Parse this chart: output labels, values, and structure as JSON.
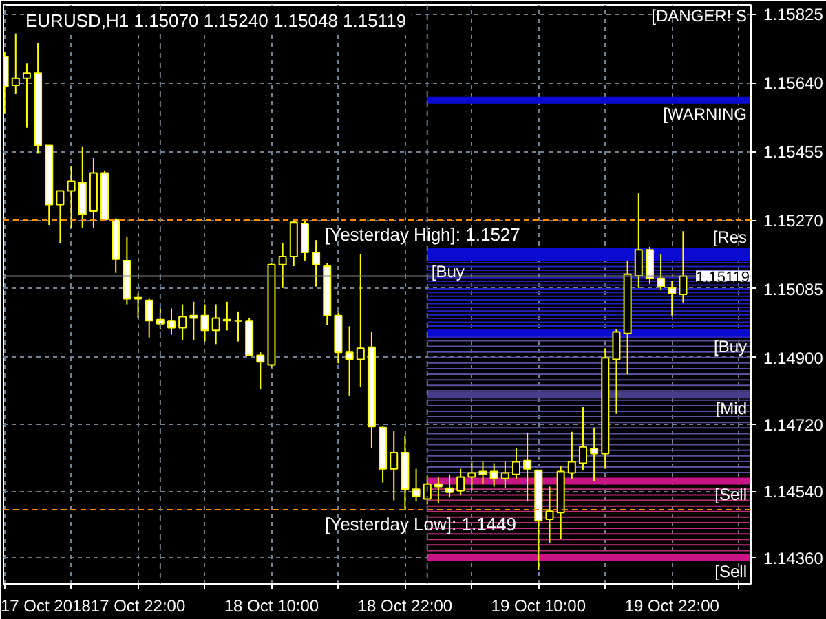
{
  "chart_data": {
    "type": "candlestick",
    "title": "EURUSD,H1  1.15070 1.15240 1.15048 1.15119",
    "color": "#ffff00",
    "x": [
      "2018-10-17T10:00",
      "2018-10-17T11:00",
      "2018-10-17T12:00",
      "2018-10-17T13:00",
      "2018-10-17T14:00",
      "2018-10-17T15:00",
      "2018-10-17T16:00",
      "2018-10-17T17:00",
      "2018-10-17T18:00",
      "2018-10-17T19:00",
      "2018-10-17T20:00",
      "2018-10-17T21:00",
      "2018-10-17T22:00",
      "2018-10-17T23:00",
      "2018-10-18T00:00",
      "2018-10-18T01:00",
      "2018-10-18T02:00",
      "2018-10-18T03:00",
      "2018-10-18T04:00",
      "2018-10-18T05:00",
      "2018-10-18T06:00",
      "2018-10-18T07:00",
      "2018-10-18T08:00",
      "2018-10-18T09:00",
      "2018-10-18T10:00",
      "2018-10-18T11:00",
      "2018-10-18T12:00",
      "2018-10-18T13:00",
      "2018-10-18T14:00",
      "2018-10-18T15:00",
      "2018-10-18T16:00",
      "2018-10-18T17:00",
      "2018-10-18T18:00",
      "2018-10-18T19:00",
      "2018-10-18T20:00",
      "2018-10-18T21:00",
      "2018-10-18T22:00",
      "2018-10-18T23:00",
      "2018-10-19T00:00",
      "2018-10-19T01:00",
      "2018-10-19T02:00",
      "2018-10-19T03:00",
      "2018-10-19T04:00",
      "2018-10-19T05:00",
      "2018-10-19T06:00",
      "2018-10-19T07:00",
      "2018-10-19T08:00",
      "2018-10-19T09:00",
      "2018-10-19T10:00",
      "2018-10-19T11:00",
      "2018-10-19T12:00",
      "2018-10-19T13:00",
      "2018-10-19T14:00",
      "2018-10-19T15:00",
      "2018-10-19T16:00",
      "2018-10-19T17:00",
      "2018-10-19T18:00",
      "2018-10-19T19:00",
      "2018-10-19T20:00",
      "2018-10-19T21:00",
      "2018-10-19T22:00",
      "2018-10-19T23:00"
    ],
    "ohlc": [
      [
        1.15711,
        1.15722,
        1.15556,
        1.1563
      ],
      [
        1.15633,
        1.15773,
        1.15611,
        1.15652
      ],
      [
        1.15652,
        1.15692,
        1.15519,
        1.15666
      ],
      [
        1.15666,
        1.15748,
        1.15449,
        1.15471
      ],
      [
        1.15471,
        1.15471,
        1.15257,
        1.15312
      ],
      [
        1.15312,
        1.15349,
        1.15209,
        1.15349
      ],
      [
        1.15349,
        1.15416,
        1.1525,
        1.15375
      ],
      [
        1.15371,
        1.15467,
        1.1525,
        1.15286
      ],
      [
        1.15294,
        1.15438,
        1.1525,
        1.15397
      ],
      [
        1.15397,
        1.15404,
        1.15272,
        1.15272
      ],
      [
        1.15272,
        1.15275,
        1.15128,
        1.15165
      ],
      [
        1.15161,
        1.15224,
        1.15043,
        1.15058
      ],
      [
        1.15061,
        1.15072,
        1.15006,
        1.15058
      ],
      [
        1.15054,
        1.15058,
        1.14954,
        1.14999
      ],
      [
        1.15002,
        1.15032,
        1.14976,
        1.14991
      ],
      [
        1.14999,
        1.15032,
        1.14962,
        1.1498
      ],
      [
        1.1498,
        1.15043,
        1.14947,
        1.1501
      ],
      [
        1.15013,
        1.1505,
        1.14947,
        1.15006
      ],
      [
        1.15013,
        1.15043,
        1.14943,
        1.14973
      ],
      [
        1.14973,
        1.15043,
        1.14936,
        1.15006
      ],
      [
        1.15002,
        1.1505,
        1.14973,
        1.14999
      ],
      [
        1.14999,
        1.15024,
        1.14943,
        1.14998
      ],
      [
        1.14999,
        1.15006,
        1.14906,
        1.14906
      ],
      [
        1.14906,
        1.14914,
        1.14814,
        1.14888
      ],
      [
        1.1488,
        1.15154,
        1.14873,
        1.1515
      ],
      [
        1.1515,
        1.15209,
        1.15087,
        1.15172
      ],
      [
        1.15172,
        1.15272,
        1.15146,
        1.15264
      ],
      [
        1.15261,
        1.15268,
        1.15161,
        1.15183
      ],
      [
        1.15183,
        1.15216,
        1.15091,
        1.1515
      ],
      [
        1.15146,
        1.15154,
        1.14988,
        1.15013
      ],
      [
        1.15013,
        1.15021,
        1.14884,
        1.14914
      ],
      [
        1.14914,
        1.14984,
        1.14796,
        1.14895
      ],
      [
        1.14895,
        1.15179,
        1.14821,
        1.14925
      ],
      [
        1.14928,
        1.14969,
        1.14655,
        1.14714
      ],
      [
        1.14711,
        1.14714,
        1.14563,
        1.146
      ],
      [
        1.146,
        1.14703,
        1.14515,
        1.14644
      ],
      [
        1.14644,
        1.14689,
        1.14489,
        1.14545
      ],
      [
        1.14545,
        1.146,
        1.14512,
        1.14526
      ],
      [
        1.14519,
        1.14582,
        1.14504,
        1.14559
      ],
      [
        1.14559,
        1.14578,
        1.14508,
        1.14552
      ],
      [
        1.14548,
        1.14585,
        1.14523,
        1.14537
      ],
      [
        1.14541,
        1.146,
        1.1453,
        1.14578
      ],
      [
        1.14578,
        1.14619,
        1.14541,
        1.14589
      ],
      [
        1.14593,
        1.14619,
        1.14559,
        1.14585
      ],
      [
        1.14593,
        1.14615,
        1.14552,
        1.14574
      ],
      [
        1.14574,
        1.14619,
        1.14548,
        1.14589
      ],
      [
        1.14585,
        1.14655,
        1.14574,
        1.14619
      ],
      [
        1.14622,
        1.14696,
        1.14512,
        1.146
      ],
      [
        1.14596,
        1.14596,
        1.14327,
        1.1446
      ],
      [
        1.14464,
        1.14552,
        1.14401,
        1.14486
      ],
      [
        1.14482,
        1.14607,
        1.14412,
        1.14593
      ],
      [
        1.14589,
        1.147,
        1.14574,
        1.14619
      ],
      [
        1.14615,
        1.14766,
        1.14596,
        1.14659
      ],
      [
        1.14655,
        1.14711,
        1.14567,
        1.14641
      ],
      [
        1.14641,
        1.14925,
        1.146,
        1.14899
      ],
      [
        1.14895,
        1.14976,
        1.14748,
        1.14969
      ],
      [
        1.14965,
        1.15161,
        1.14855,
        1.15124
      ],
      [
        1.1512,
        1.15342,
        1.15087,
        1.1519
      ],
      [
        1.1519,
        1.15198,
        1.15098,
        1.15113
      ],
      [
        1.15113,
        1.15179,
        1.15083,
        1.15091
      ],
      [
        1.15087,
        1.15106,
        1.15013,
        1.15072
      ],
      [
        1.1507,
        1.1524,
        1.15048,
        1.15119
      ]
    ],
    "series": [
      {
        "type": "line",
        "name": "[WARNING",
        "color": "#0a0ad2",
        "x": [
          "2018-10-19T00:00",
          "2018-10-20T05:06"
        ],
        "values": [
          1.15593,
          1.15593
        ]
      },
      {
        "type": "line",
        "name": "[Res",
        "color": "#0a0ad2",
        "x": [
          "2018-10-19T00:00",
          "2018-10-20T05:06"
        ],
        "values": [
          1.15186,
          1.15186
        ]
      },
      {
        "type": "line",
        "name": "[Buy",
        "color": "#0a0ad2",
        "x": [
          "2018-10-19T00:00",
          "2018-10-20T05:06"
        ],
        "values": [
          1.15168,
          1.15168
        ]
      },
      {
        "type": "line",
        "name": "[Buy",
        "color": "#0a0ad2",
        "x": [
          "2018-10-19T00:00",
          "2018-10-20T05:06"
        ],
        "values": [
          1.14967,
          1.14967
        ]
      },
      {
        "type": "line",
        "name": "[Mid",
        "color": "#483d8b",
        "x": [
          "2018-10-19T00:00",
          "2018-10-20T05:06"
        ],
        "values": [
          1.14799,
          1.14799
        ]
      },
      {
        "type": "line",
        "name": "[Sell",
        "color": "#c71585",
        "x": [
          "2018-10-19T00:00",
          "2018-10-20T05:06"
        ],
        "values": [
          1.14567,
          1.14567
        ]
      },
      {
        "type": "line",
        "name": "[Sell",
        "color": "#c71585",
        "x": [
          "2018-10-19T00:00",
          "2018-10-20T05:06"
        ],
        "values": [
          1.14361,
          1.14361
        ]
      },
      {
        "type": "line",
        "color": "#2020c0",
        "x": [
          "2018-10-19T00:00",
          "2018-10-20T05:06"
        ],
        "values": [
          1.15155,
          1.15155
        ]
      },
      {
        "type": "line",
        "color": "#2020c0",
        "x": [
          "2018-10-19T00:00",
          "2018-10-20T05:06"
        ],
        "values": [
          1.15145,
          1.15145
        ]
      },
      {
        "type": "line",
        "color": "#2020c0",
        "x": [
          "2018-10-19T00:00",
          "2018-10-20T05:06"
        ],
        "values": [
          1.15135,
          1.15135
        ]
      },
      {
        "type": "line",
        "color": "#2020c0",
        "x": [
          "2018-10-19T00:00",
          "2018-10-20T05:06"
        ],
        "values": [
          1.15125,
          1.15125
        ]
      },
      {
        "type": "line",
        "color": "#2020c0",
        "x": [
          "2018-10-19T00:00",
          "2018-10-20T05:06"
        ],
        "values": [
          1.15115,
          1.15115
        ]
      },
      {
        "type": "line",
        "color": "#2020c0",
        "x": [
          "2018-10-19T00:00",
          "2018-10-20T05:06"
        ],
        "values": [
          1.15105,
          1.15105
        ]
      },
      {
        "type": "line",
        "color": "#2020c0",
        "x": [
          "2018-10-19T00:00",
          "2018-10-20T05:06"
        ],
        "values": [
          1.15095,
          1.15095
        ]
      },
      {
        "type": "line",
        "color": "#2020c0",
        "x": [
          "2018-10-19T00:00",
          "2018-10-20T05:06"
        ],
        "values": [
          1.15085,
          1.15085
        ]
      },
      {
        "type": "line",
        "color": "#2020c0",
        "x": [
          "2018-10-19T00:00",
          "2018-10-20T05:06"
        ],
        "values": [
          1.15075,
          1.15075
        ]
      },
      {
        "type": "line",
        "color": "#2020c0",
        "x": [
          "2018-10-19T00:00",
          "2018-10-20T05:06"
        ],
        "values": [
          1.15065,
          1.15065
        ]
      },
      {
        "type": "line",
        "color": "#2020c0",
        "x": [
          "2018-10-19T00:00",
          "2018-10-20T05:06"
        ],
        "values": [
          1.15055,
          1.15055
        ]
      },
      {
        "type": "line",
        "color": "#2020c0",
        "x": [
          "2018-10-19T00:00",
          "2018-10-20T05:06"
        ],
        "values": [
          1.15045,
          1.15045
        ]
      },
      {
        "type": "line",
        "color": "#2020c0",
        "x": [
          "2018-10-19T00:00",
          "2018-10-20T05:06"
        ],
        "values": [
          1.15035,
          1.15035
        ]
      },
      {
        "type": "line",
        "color": "#2020c0",
        "x": [
          "2018-10-19T00:00",
          "2018-10-20T05:06"
        ],
        "values": [
          1.15025,
          1.15025
        ]
      },
      {
        "type": "line",
        "color": "#2020c0",
        "x": [
          "2018-10-19T00:00",
          "2018-10-20T05:06"
        ],
        "values": [
          1.15015,
          1.15015
        ]
      },
      {
        "type": "line",
        "color": "#2020c0",
        "x": [
          "2018-10-19T00:00",
          "2018-10-20T05:06"
        ],
        "values": [
          1.15005,
          1.15005
        ]
      },
      {
        "type": "line",
        "color": "#2020c0",
        "x": [
          "2018-10-19T00:00",
          "2018-10-20T05:06"
        ],
        "values": [
          1.14995,
          1.14995
        ]
      },
      {
        "type": "line",
        "color": "#2020c0",
        "x": [
          "2018-10-19T00:00",
          "2018-10-20T05:06"
        ],
        "values": [
          1.14985,
          1.14985
        ]
      },
      {
        "type": "line",
        "color": "#2020c0",
        "x": [
          "2018-10-19T00:00",
          "2018-10-20T05:06"
        ],
        "values": [
          1.14955,
          1.14955
        ]
      },
      {
        "type": "line",
        "color": "#5a50a0",
        "x": [
          "2018-10-19T00:00",
          "2018-10-20T05:06"
        ],
        "values": [
          1.14945,
          1.14945
        ]
      },
      {
        "type": "line",
        "color": "#5a50a0",
        "x": [
          "2018-10-19T00:00",
          "2018-10-20T05:06"
        ],
        "values": [
          1.1493,
          1.1493
        ]
      },
      {
        "type": "line",
        "color": "#5a50a0",
        "x": [
          "2018-10-19T00:00",
          "2018-10-20T05:06"
        ],
        "values": [
          1.14915,
          1.14915
        ]
      },
      {
        "type": "line",
        "color": "#5a50a0",
        "x": [
          "2018-10-19T00:00",
          "2018-10-20T05:06"
        ],
        "values": [
          1.149,
          1.149
        ]
      },
      {
        "type": "line",
        "color": "#5a50a0",
        "x": [
          "2018-10-19T00:00",
          "2018-10-20T05:06"
        ],
        "values": [
          1.14885,
          1.14885
        ]
      },
      {
        "type": "line",
        "color": "#5a50a0",
        "x": [
          "2018-10-19T00:00",
          "2018-10-20T05:06"
        ],
        "values": [
          1.1487,
          1.1487
        ]
      },
      {
        "type": "line",
        "color": "#5a50a0",
        "x": [
          "2018-10-19T00:00",
          "2018-10-20T05:06"
        ],
        "values": [
          1.14855,
          1.14855
        ]
      },
      {
        "type": "line",
        "color": "#5a50a0",
        "x": [
          "2018-10-19T00:00",
          "2018-10-20T05:06"
        ],
        "values": [
          1.1484,
          1.1484
        ]
      },
      {
        "type": "line",
        "color": "#5a50a0",
        "x": [
          "2018-10-19T00:00",
          "2018-10-20T05:06"
        ],
        "values": [
          1.14825,
          1.14825
        ]
      },
      {
        "type": "line",
        "color": "#5a50a0",
        "x": [
          "2018-10-19T00:00",
          "2018-10-20T05:06"
        ],
        "values": [
          1.1481,
          1.1481
        ]
      },
      {
        "type": "line",
        "color": "#5a50a0",
        "x": [
          "2018-10-19T00:00",
          "2018-10-20T05:06"
        ],
        "values": [
          1.14785,
          1.14785
        ]
      },
      {
        "type": "line",
        "color": "#5a50a0",
        "x": [
          "2018-10-19T00:00",
          "2018-10-20T05:06"
        ],
        "values": [
          1.1477,
          1.1477
        ]
      },
      {
        "type": "line",
        "color": "#5a50a0",
        "x": [
          "2018-10-19T00:00",
          "2018-10-20T05:06"
        ],
        "values": [
          1.14755,
          1.14755
        ]
      },
      {
        "type": "line",
        "color": "#5a50a0",
        "x": [
          "2018-10-19T00:00",
          "2018-10-20T05:06"
        ],
        "values": [
          1.1474,
          1.1474
        ]
      },
      {
        "type": "line",
        "color": "#5a50a0",
        "x": [
          "2018-10-19T00:00",
          "2018-10-20T05:06"
        ],
        "values": [
          1.14725,
          1.14725
        ]
      },
      {
        "type": "line",
        "color": "#5a50a0",
        "x": [
          "2018-10-19T00:00",
          "2018-10-20T05:06"
        ],
        "values": [
          1.1471,
          1.1471
        ]
      },
      {
        "type": "line",
        "color": "#5a50a0",
        "x": [
          "2018-10-19T00:00",
          "2018-10-20T05:06"
        ],
        "values": [
          1.14695,
          1.14695
        ]
      },
      {
        "type": "line",
        "color": "#5a50a0",
        "x": [
          "2018-10-19T00:00",
          "2018-10-20T05:06"
        ],
        "values": [
          1.1468,
          1.1468
        ]
      },
      {
        "type": "line",
        "color": "#5a50a0",
        "x": [
          "2018-10-19T00:00",
          "2018-10-20T05:06"
        ],
        "values": [
          1.14665,
          1.14665
        ]
      },
      {
        "type": "line",
        "color": "#5a50a0",
        "x": [
          "2018-10-19T00:00",
          "2018-10-20T05:06"
        ],
        "values": [
          1.1465,
          1.1465
        ]
      },
      {
        "type": "line",
        "color": "#5a50a0",
        "x": [
          "2018-10-19T00:00",
          "2018-10-20T05:06"
        ],
        "values": [
          1.14635,
          1.14635
        ]
      },
      {
        "type": "line",
        "color": "#5a50a0",
        "x": [
          "2018-10-19T00:00",
          "2018-10-20T05:06"
        ],
        "values": [
          1.1462,
          1.1462
        ]
      },
      {
        "type": "line",
        "color": "#5a50a0",
        "x": [
          "2018-10-19T00:00",
          "2018-10-20T05:06"
        ],
        "values": [
          1.14605,
          1.14605
        ]
      },
      {
        "type": "line",
        "color": "#5a50a0",
        "x": [
          "2018-10-19T00:00",
          "2018-10-20T05:06"
        ],
        "values": [
          1.1459,
          1.1459
        ]
      },
      {
        "type": "line",
        "color": "#c0307a",
        "x": [
          "2018-10-19T00:00",
          "2018-10-20T05:06"
        ],
        "values": [
          1.14545,
          1.14545
        ]
      },
      {
        "type": "line",
        "color": "#c0307a",
        "x": [
          "2018-10-19T00:00",
          "2018-10-20T05:06"
        ],
        "values": [
          1.1453,
          1.1453
        ]
      },
      {
        "type": "line",
        "color": "#c0307a",
        "x": [
          "2018-10-19T00:00",
          "2018-10-20T05:06"
        ],
        "values": [
          1.14515,
          1.14515
        ]
      },
      {
        "type": "line",
        "color": "#c0307a",
        "x": [
          "2018-10-19T00:00",
          "2018-10-20T05:06"
        ],
        "values": [
          1.145,
          1.145
        ]
      },
      {
        "type": "line",
        "color": "#c0307a",
        "x": [
          "2018-10-19T00:00",
          "2018-10-20T05:06"
        ],
        "values": [
          1.14485,
          1.14485
        ]
      },
      {
        "type": "line",
        "color": "#c0307a",
        "x": [
          "2018-10-19T00:00",
          "2018-10-20T05:06"
        ],
        "values": [
          1.1447,
          1.1447
        ]
      },
      {
        "type": "line",
        "color": "#c0307a",
        "x": [
          "2018-10-19T00:00",
          "2018-10-20T05:06"
        ],
        "values": [
          1.14455,
          1.14455
        ]
      },
      {
        "type": "line",
        "color": "#c0307a",
        "x": [
          "2018-10-19T00:00",
          "2018-10-20T05:06"
        ],
        "values": [
          1.1444,
          1.1444
        ]
      },
      {
        "type": "line",
        "color": "#c0307a",
        "x": [
          "2018-10-19T00:00",
          "2018-10-20T05:06"
        ],
        "values": [
          1.14425,
          1.14425
        ]
      },
      {
        "type": "line",
        "color": "#c0307a",
        "x": [
          "2018-10-19T00:00",
          "2018-10-20T05:06"
        ],
        "values": [
          1.1441,
          1.1441
        ]
      },
      {
        "type": "line",
        "color": "#c0307a",
        "x": [
          "2018-10-19T00:00",
          "2018-10-20T05:06"
        ],
        "values": [
          1.14395,
          1.14395
        ]
      },
      {
        "type": "line",
        "color": "#c0307a",
        "x": [
          "2018-10-19T00:00",
          "2018-10-20T05:06"
        ],
        "values": [
          1.1438,
          1.1438
        ]
      }
    ],
    "xlim": [
      "2018-10-17T09:54",
      "2018-10-20T05:06"
    ],
    "ylim": [
      1.1429,
      1.1585
    ],
    "xticks": [
      {
        "value": "2018-10-17T10:00",
        "label": "17 Oct 2018"
      },
      {
        "value": "2018-10-17T16:00",
        "label": null
      },
      {
        "value": "2018-10-17T22:00",
        "label": "17 Oct 22:00"
      },
      {
        "value": "2018-10-18T04:00",
        "label": null
      },
      {
        "value": "2018-10-18T10:00",
        "label": "18 Oct 10:00"
      },
      {
        "value": "2018-10-18T16:00",
        "label": null
      },
      {
        "value": "2018-10-18T22:00",
        "label": "18 Oct 22:00"
      },
      {
        "value": "2018-10-19T04:00",
        "label": null
      },
      {
        "value": "2018-10-19T10:00",
        "label": "19 Oct 10:00"
      },
      {
        "value": "2018-10-19T16:00",
        "label": null
      },
      {
        "value": "2018-10-19T22:00",
        "label": "19 Oct 22:00"
      },
      {
        "value": "2018-10-20T04:00",
        "label": null
      }
    ],
    "yticks": [
      1.15825,
      {
        "value": 1.1564,
        "label": "1.15640"
      },
      1.15455,
      {
        "value": 1.1527,
        "label": "1.15270"
      },
      1.15085,
      {
        "value": 1.149,
        "label": "1.14900"
      },
      {
        "value": 1.1472,
        "label": "1.14720"
      },
      {
        "value": 1.1454,
        "label": "1.14540"
      },
      {
        "value": 1.1436,
        "label": "1.14360"
      }
    ],
    "grid": true,
    "ref_lines": [
      {
        "axis": "y",
        "value": 1.1527,
        "label": "[Yesterday High]: 1.1527",
        "color": "#ff8c00",
        "line_style": "dashed"
      },
      {
        "axis": "y",
        "value": 1.1449,
        "label": "[Yesterday Low]: 1.1449",
        "color": "#ff8c00",
        "line_style": "dashed"
      },
      {
        "axis": "y",
        "value": 1.15119,
        "label": "1.15119",
        "color": "#808080",
        "line_style": "solid"
      },
      {
        "axis": "x",
        "value": "2018-10-18T00:00",
        "color": "#708090",
        "line_style": "dashed"
      },
      {
        "axis": "x",
        "value": "2018-10-19T00:00",
        "color": "#708090",
        "line_style": "dashed"
      }
    ],
    "annotations": [
      "[DANGER! S"
    ]
  }
}
